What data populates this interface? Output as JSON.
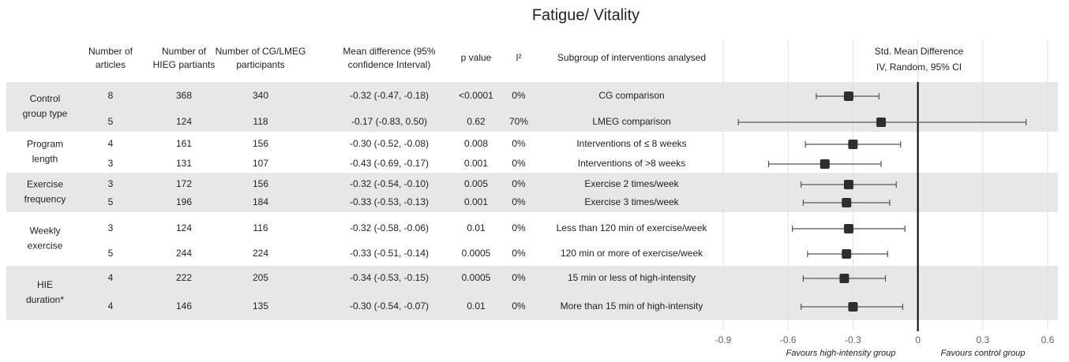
{
  "title": "Fatigue/ Vitality",
  "table": {
    "headers": [
      [
        "Number of",
        "articles"
      ],
      [
        "Number of",
        "HIEG partiants"
      ],
      [
        "Number of CG/LMEG",
        "participants"
      ],
      [
        "Mean difference (95%",
        "confidence Interval)"
      ],
      [
        "p value"
      ],
      [
        "I²"
      ],
      [
        "Subgroup of interventions analysed"
      ]
    ],
    "groups": [
      {
        "label": [
          "Control",
          "group type"
        ],
        "rows": [
          [
            "8",
            "368",
            "340",
            "-0.32 (-0.47, -0.18)",
            "<0.0001",
            "0%",
            "CG comparison"
          ],
          [
            "5",
            "124",
            "118",
            "-0.17 (-0.83, 0.50)",
            "0.62",
            "70%",
            "LMEG comparison"
          ]
        ]
      },
      {
        "label": [
          "Program",
          "length"
        ],
        "rows": [
          [
            "4",
            "161",
            "156",
            "-0.30 (-0.52, -0.08)",
            "0.008",
            "0%",
            "Interventions of ≤ 8 weeks"
          ],
          [
            "3",
            "131",
            "107",
            "-0.43 (-0.69, -0.17)",
            "0.001",
            "0%",
            "Interventions of >8 weeks"
          ]
        ]
      },
      {
        "label": [
          "Exercise",
          "frequency"
        ],
        "rows": [
          [
            "3",
            "172",
            "156",
            "-0.32 (-0.54, -0.10)",
            "0.005",
            "0%",
            "Exercise 2 times/week"
          ],
          [
            "5",
            "196",
            "184",
            "-0.33 (-0.53, -0.13)",
            "0.001",
            "0%",
            "Exercise 3 times/week"
          ]
        ]
      },
      {
        "label": [
          "Weekly",
          "exercise"
        ],
        "rows": [
          [
            "3",
            "124",
            "116",
            "-0.32 (-0.58, -0.06)",
            "0.01",
            "0%",
            "Less than 120 min of exercise/week"
          ],
          [
            "5",
            "244",
            "224",
            "-0.33 (-0.51, -0.14)",
            "0.0005",
            "0%",
            "120 min or more of exercise/week"
          ]
        ]
      },
      {
        "label": [
          "HIE",
          "duration*"
        ],
        "rows": [
          [
            "4",
            "222",
            "205",
            "-0.34 (-0.53, -0.15)",
            "0.0005",
            "0%",
            "15 min or less of high-intensity"
          ],
          [
            "4",
            "146",
            "135",
            "-0.30 (-0.54, -0.07)",
            "0.01",
            "0%",
            "More than 15 min of high-intensity"
          ]
        ]
      }
    ]
  },
  "chart_data": {
    "type": "forest",
    "title": "Std. Mean Difference",
    "subtitle": "IV, Random, 95% CI",
    "estimates": [
      -0.32,
      -0.17,
      -0.3,
      -0.43,
      -0.32,
      -0.33,
      -0.32,
      -0.33,
      -0.34,
      -0.3
    ],
    "lower": [
      -0.47,
      -0.83,
      -0.52,
      -0.69,
      -0.54,
      -0.53,
      -0.58,
      -0.51,
      -0.53,
      -0.54
    ],
    "upper": [
      -0.18,
      0.5,
      -0.08,
      -0.17,
      -0.1,
      -0.13,
      -0.06,
      -0.14,
      -0.15,
      -0.07
    ],
    "xlim": [
      -0.9,
      0.6
    ],
    "xticks": [
      -0.9,
      -0.6,
      -0.3,
      0,
      0.3,
      0.6
    ],
    "grid": true,
    "annotations": [
      "Favours high-intensity group",
      "Favours control group"
    ],
    "color": "#2e2e2e"
  }
}
